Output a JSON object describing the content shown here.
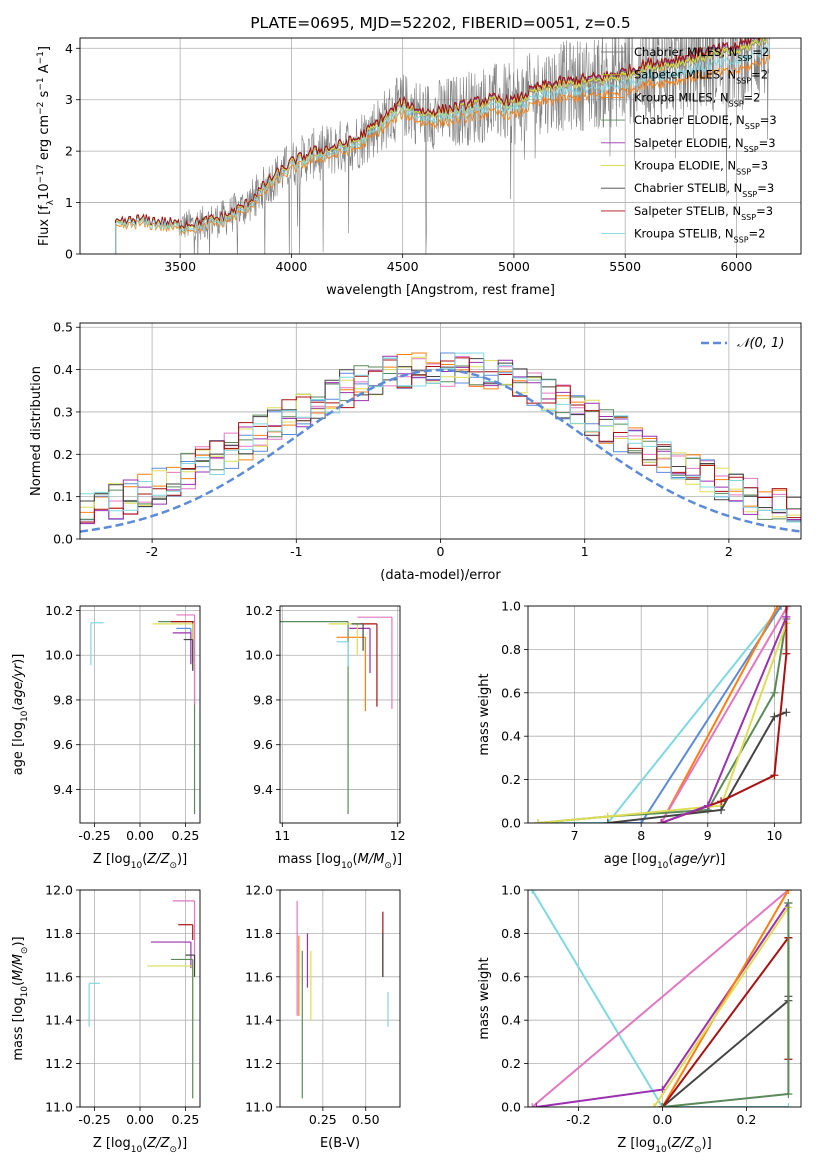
{
  "colors": {
    "chabrier_miles": "#7f7f7f",
    "salpeter_miles": "#bcbd22",
    "kroupa_miles": "#ff7f0e",
    "chabrier_elodie": "#5a8a5a",
    "salpeter_elodie": "#9b30b0",
    "kroupa_elodie": "#dddd55",
    "chabrier_stelib": "#444444",
    "salpeter_stelib": "#aa1111",
    "kroupa_stelib": "#7fd8e0",
    "blue": "#5b8bd8",
    "pink": "#e377c2"
  },
  "chart_data": [
    {
      "id": "spectrum",
      "type": "line",
      "title": "PLATE=0695, MJD=52202, FIBERID=0051, z=0.5",
      "xlabel": "wavelength [Angstrom, rest frame]",
      "ylabel": "Flux [fλ10⁻¹⁷ erg cm⁻² s⁻¹ A⁻¹]",
      "xlim": [
        3050,
        6290
      ],
      "ylim": [
        0,
        4.2
      ],
      "xticks": [
        3500,
        4000,
        4500,
        5000,
        5500,
        6000
      ],
      "yticks": [
        0,
        1,
        2,
        3,
        4
      ],
      "grid": true,
      "legend_position": "top-right",
      "continuum_x": [
        3210,
        3300,
        3400,
        3500,
        3600,
        3700,
        3800,
        3900,
        4000,
        4100,
        4200,
        4300,
        4400,
        4500,
        4600,
        4700,
        4800,
        4900,
        5000,
        5100,
        5200,
        5300,
        5400,
        5500,
        5600,
        5700,
        5800,
        5900,
        6000,
        6100,
        6150
      ],
      "continuum_y": [
        0.55,
        0.65,
        0.62,
        0.55,
        0.6,
        0.7,
        0.95,
        1.4,
        1.75,
        1.95,
        2.05,
        2.2,
        2.55,
        2.9,
        2.7,
        2.75,
        2.85,
        2.95,
        2.9,
        3.15,
        3.25,
        3.3,
        3.35,
        3.45,
        3.6,
        3.65,
        3.75,
        3.85,
        3.9,
        4.1,
        4.2
      ],
      "series": [
        {
          "name": "Chabrier MILES, N_SSP=2",
          "color_key": "chabrier_miles",
          "offset": 0.0
        },
        {
          "name": "Salpeter MILES, N_SSP=2",
          "color_key": "salpeter_miles",
          "offset": 0.02
        },
        {
          "name": "Kroupa MILES, N_SSP=2",
          "color_key": "kroupa_miles",
          "offset": -0.25
        },
        {
          "name": "Chabrier ELODIE, N_SSP=3",
          "color_key": "chabrier_elodie",
          "offset": 0.05
        },
        {
          "name": "Salpeter ELODIE, N_SSP=3",
          "color_key": "salpeter_elodie",
          "offset": 0.08
        },
        {
          "name": "Kroupa ELODIE, N_SSP=3",
          "color_key": "kroupa_elodie",
          "offset": 0.03
        },
        {
          "name": "Chabrier STELIB, N_SSP=3",
          "color_key": "chabrier_stelib",
          "offset": 0.1
        },
        {
          "name": "Salpeter STELIB, N_SSP=3",
          "color_key": "salpeter_stelib",
          "offset": 0.1
        },
        {
          "name": "Kroupa STELIB, N_SSP=2",
          "color_key": "kroupa_stelib",
          "offset": -0.12
        }
      ],
      "legend_labels": [
        [
          "Chabrier MILES, N",
          "SSP",
          "=2"
        ],
        [
          "Salpeter MILES, N",
          "SSP",
          "=2"
        ],
        [
          "Kroupa MILES, N",
          "SSP",
          "=2"
        ],
        [
          "Chabrier ELODIE, N",
          "SSP",
          "=3"
        ],
        [
          "Salpeter ELODIE, N",
          "SSP",
          "=3"
        ],
        [
          "Kroupa ELODIE, N",
          "SSP",
          "=3"
        ],
        [
          "Chabrier STELIB, N",
          "SSP",
          "=3"
        ],
        [
          "Salpeter STELIB, N",
          "SSP",
          "=3"
        ],
        [
          "Kroupa STELIB, N",
          "SSP",
          "=2"
        ]
      ]
    },
    {
      "id": "residuals",
      "type": "line",
      "xlabel": "(data-model)/error",
      "ylabel": "Normed distribution",
      "xlim": [
        -2.5,
        2.5
      ],
      "ylim": [
        0,
        0.51
      ],
      "xticks": [
        -2,
        -1,
        0,
        1,
        2
      ],
      "yticks": [
        0.0,
        0.1,
        0.2,
        0.3,
        0.4,
        0.5
      ],
      "grid": true,
      "legend_position": "top-right",
      "gaussian_label": "𝒩(0, 1)",
      "bin_width": 0.1,
      "bin_start": -2.5,
      "hist_colors": [
        "#e377c2",
        "#ff7f0e",
        "#5b8bd8",
        "#5a8a5a",
        "#dddd55",
        "#9b30b0",
        "#444444",
        "#aa1111",
        "#7fd8e0"
      ]
    },
    {
      "id": "age_vs_Z",
      "type": "scatter",
      "xlabel": "Z [log10(Z/Z⊙)]",
      "ylabel": "age  [log10(age/yr)]",
      "xlim": [
        -0.33,
        0.33
      ],
      "ylim": [
        9.25,
        10.22
      ],
      "xticks": [
        -0.25,
        0.0,
        0.25
      ],
      "yticks": [
        9.4,
        9.6,
        9.8,
        10.0,
        10.2
      ],
      "grid": true,
      "points": [
        {
          "x": -0.27,
          "y": 10.145,
          "xerr_hi": 0.07,
          "yerr_lo": 0.19,
          "color_key": "kroupa_stelib"
        },
        {
          "x": 0.3,
          "y": 10.15,
          "xerr_lo": 0.2,
          "yerr_lo": 0.86,
          "color_key": "chabrier_elodie"
        },
        {
          "x": 0.3,
          "y": 10.18,
          "xerr_lo": 0.1,
          "yerr_lo": 0.4,
          "color_key": "pink"
        },
        {
          "x": 0.29,
          "y": 10.15,
          "xerr_lo": 0.12,
          "yerr_lo": 0.18,
          "color_key": "salpeter_stelib"
        },
        {
          "x": 0.28,
          "y": 10.12,
          "xerr_lo": 0.08,
          "yerr_lo": 0.16,
          "color_key": "blue"
        },
        {
          "x": 0.28,
          "y": 10.1,
          "xerr_lo": 0.1,
          "yerr_lo": 0.14,
          "color_key": "salpeter_elodie"
        },
        {
          "x": 0.29,
          "y": 10.14,
          "xerr_lo": 0.22,
          "yerr_lo": 0.2,
          "color_key": "kroupa_elodie"
        },
        {
          "x": 0.29,
          "y": 10.07,
          "xerr_lo": 0.05,
          "yerr_lo": 0.14,
          "color_key": "chabrier_stelib"
        }
      ]
    },
    {
      "id": "age_vs_mass",
      "type": "scatter",
      "xlabel": "mass [log10(M/M⊙)]",
      "xlim": [
        10.98,
        12.02
      ],
      "ylim": [
        9.25,
        10.22
      ],
      "xticks": [
        11,
        12
      ],
      "yticks": [
        9.4,
        9.6,
        9.8,
        10.0,
        10.2
      ],
      "grid": true,
      "points": [
        {
          "x": 11.57,
          "y": 10.15,
          "xerr_lo": 0.6,
          "yerr_lo": 0.86,
          "color_key": "chabrier_elodie"
        },
        {
          "x": 11.95,
          "y": 10.17,
          "xerr_lo": 0.3,
          "yerr_lo": 0.41,
          "color_key": "pink"
        },
        {
          "x": 11.72,
          "y": 10.08,
          "xerr_lo": 0.25,
          "yerr_lo": 0.33,
          "color_key": "kroupa_miles"
        },
        {
          "x": 11.57,
          "y": 10.06,
          "xerr_lo": 0.1,
          "yerr_lo": 0.11,
          "color_key": "kroupa_stelib"
        },
        {
          "x": 11.82,
          "y": 10.14,
          "xerr_lo": 0.14,
          "yerr_lo": 0.37,
          "color_key": "salpeter_stelib"
        },
        {
          "x": 11.76,
          "y": 10.12,
          "xerr_lo": 0.18,
          "yerr_lo": 0.2,
          "color_key": "salpeter_elodie"
        },
        {
          "x": 11.65,
          "y": 10.14,
          "xerr_lo": 0.25,
          "yerr_lo": 0.14,
          "color_key": "kroupa_elodie"
        },
        {
          "x": 11.7,
          "y": 10.14,
          "xerr_lo": 0.1,
          "yerr_lo": 0.12,
          "color_key": "chabrier_stelib"
        }
      ]
    },
    {
      "id": "cumweight_age",
      "type": "line",
      "xlabel": "age  [log10(age/yr)]",
      "ylabel": "mass weight",
      "xlim": [
        6.3,
        10.4
      ],
      "ylim": [
        0,
        1.0
      ],
      "xticks": [
        7,
        8,
        9,
        10
      ],
      "yticks": [
        0.0,
        0.2,
        0.4,
        0.6,
        0.8,
        1.0
      ],
      "grid": true,
      "series": [
        {
          "color_key": "kroupa_stelib",
          "x": [
            6.45,
            7.5,
            10.1
          ],
          "y": [
            0.0,
            0.0,
            1.0
          ]
        },
        {
          "color_key": "blue",
          "x": [
            7.5,
            8.0,
            10.1
          ],
          "y": [
            0.0,
            0.0,
            1.0
          ]
        },
        {
          "color_key": "kroupa_miles",
          "x": [
            8.3,
            10.05
          ],
          "y": [
            0.0,
            1.0
          ]
        },
        {
          "color_key": "pink",
          "x": [
            8.3,
            10.2
          ],
          "y": [
            0.0,
            1.0
          ]
        },
        {
          "color_key": "chabrier_elodie",
          "x": [
            6.45,
            7.5,
            9.0,
            10.0,
            10.18
          ],
          "y": [
            0.0,
            0.03,
            0.06,
            0.6,
            0.94
          ]
        },
        {
          "color_key": "kroupa_elodie",
          "x": [
            6.45,
            7.5,
            9.2,
            10.18
          ],
          "y": [
            0.0,
            0.03,
            0.08,
            0.92
          ]
        },
        {
          "color_key": "chabrier_stelib",
          "x": [
            7.5,
            9.2,
            10.0,
            10.18
          ],
          "y": [
            0.0,
            0.06,
            0.49,
            0.51
          ]
        },
        {
          "color_key": "salpeter_stelib",
          "x": [
            8.3,
            9.2,
            10.0,
            10.18,
            10.18
          ],
          "y": [
            0.0,
            0.1,
            0.22,
            0.78,
            1.0
          ]
        },
        {
          "color_key": "salpeter_elodie",
          "x": [
            8.3,
            9.0,
            10.18
          ],
          "y": [
            0.0,
            0.08,
            0.95
          ]
        }
      ]
    },
    {
      "id": "mass_vs_Z",
      "type": "scatter",
      "xlabel": "Z [log10(Z/Z⊙)]",
      "ylabel": "mass [log10(M/M⊙)]",
      "xlim": [
        -0.33,
        0.33
      ],
      "ylim": [
        11.0,
        12.0
      ],
      "xticks": [
        -0.25,
        0.0,
        0.25
      ],
      "yticks": [
        11.0,
        11.2,
        11.4,
        11.6,
        11.8,
        12.0
      ],
      "grid": true,
      "points": [
        {
          "x": -0.28,
          "y": 11.57,
          "xerr_hi": 0.06,
          "yerr_lo": 0.2,
          "color_key": "kroupa_stelib"
        },
        {
          "x": 0.3,
          "y": 11.95,
          "xerr_lo": 0.12,
          "yerr_lo": 0.3,
          "color_key": "pink"
        },
        {
          "x": 0.29,
          "y": 11.84,
          "xerr_lo": 0.08,
          "yerr_lo": 0.07,
          "color_key": "salpeter_stelib"
        },
        {
          "x": 0.28,
          "y": 11.76,
          "xerr_lo": 0.22,
          "yerr_lo": 0.12,
          "color_key": "salpeter_elodie"
        },
        {
          "x": 0.29,
          "y": 11.65,
          "xerr_lo": 0.25,
          "yerr_lo": 0.25,
          "color_key": "kroupa_elodie"
        },
        {
          "x": 0.29,
          "y": 11.68,
          "xerr_lo": 0.12,
          "yerr_lo": 0.64,
          "color_key": "chabrier_elodie"
        },
        {
          "x": 0.3,
          "y": 11.7,
          "xerr_lo": 0.05,
          "yerr_lo": 0.1,
          "color_key": "chabrier_stelib"
        }
      ]
    },
    {
      "id": "mass_vs_ebv",
      "type": "scatter",
      "xlabel": "E(B-V)",
      "xlim": [
        0.0,
        0.7
      ],
      "ylim": [
        11.0,
        12.0
      ],
      "xticks": [
        0.25,
        0.5
      ],
      "yticks": [
        11.0,
        11.2,
        11.4,
        11.6,
        11.8,
        12.0
      ],
      "grid": true,
      "points": [
        {
          "x": 0.1,
          "y": 11.62,
          "yerr_hi": 0.33,
          "yerr_lo": 0.2,
          "color_key": "pink"
        },
        {
          "x": 0.11,
          "y": 11.55,
          "yerr_hi": 0.24,
          "yerr_lo": 0.13,
          "color_key": "kroupa_miles"
        },
        {
          "x": 0.13,
          "y": 11.4,
          "yerr_hi": 0.32,
          "yerr_lo": 0.36,
          "color_key": "chabrier_elodie"
        },
        {
          "x": 0.16,
          "y": 11.65,
          "yerr_hi": 0.15,
          "yerr_lo": 0.1,
          "color_key": "salpeter_elodie"
        },
        {
          "x": 0.18,
          "y": 11.55,
          "yerr_hi": 0.17,
          "yerr_lo": 0.15,
          "color_key": "kroupa_elodie"
        },
        {
          "x": 0.6,
          "y": 11.75,
          "yerr_hi": 0.15,
          "yerr_lo": 0.15,
          "color_key": "salpeter_stelib"
        },
        {
          "x": 0.6,
          "y": 11.7,
          "yerr_hi": 0.1,
          "yerr_lo": 0.1,
          "color_key": "chabrier_stelib"
        },
        {
          "x": 0.63,
          "y": 11.45,
          "yerr_hi": 0.08,
          "yerr_lo": 0.08,
          "color_key": "kroupa_stelib"
        }
      ]
    },
    {
      "id": "cumweight_Z",
      "type": "line",
      "xlabel": "Z [log10(Z/Z⊙)]",
      "ylabel": "mass weight",
      "xlim": [
        -0.32,
        0.33
      ],
      "ylim": [
        0,
        1.0
      ],
      "xticks": [
        -0.2,
        0.0,
        0.2
      ],
      "yticks": [
        0.0,
        0.2,
        0.4,
        0.6,
        0.8,
        1.0
      ],
      "grid": true,
      "series": [
        {
          "color_key": "kroupa_stelib",
          "x": [
            -0.31,
            0.0,
            0.3
          ],
          "y": [
            1.0,
            0.0,
            0.0
          ]
        },
        {
          "color_key": "pink",
          "x": [
            -0.31,
            0.3
          ],
          "y": [
            0.0,
            1.0
          ]
        },
        {
          "color_key": "salpeter_elodie",
          "x": [
            -0.3,
            0.0,
            0.3
          ],
          "y": [
            0.0,
            0.08,
            0.94
          ]
        },
        {
          "color_key": "kroupa_miles",
          "x": [
            0.0,
            0.3
          ],
          "y": [
            0.0,
            1.0
          ]
        },
        {
          "color_key": "kroupa_elodie",
          "x": [
            -0.02,
            0.3
          ],
          "y": [
            0.0,
            0.92
          ]
        },
        {
          "color_key": "chabrier_stelib",
          "x": [
            0.0,
            0.3,
            0.3
          ],
          "y": [
            0.0,
            0.49,
            0.51
          ]
        },
        {
          "color_key": "salpeter_stelib",
          "x": [
            0.0,
            0.3,
            0.3,
            0.3
          ],
          "y": [
            0.0,
            0.78,
            0.22,
            0.78
          ]
        },
        {
          "color_key": "chabrier_elodie",
          "x": [
            0.0,
            0.3,
            0.3
          ],
          "y": [
            0.0,
            0.06,
            0.94
          ]
        }
      ]
    }
  ]
}
